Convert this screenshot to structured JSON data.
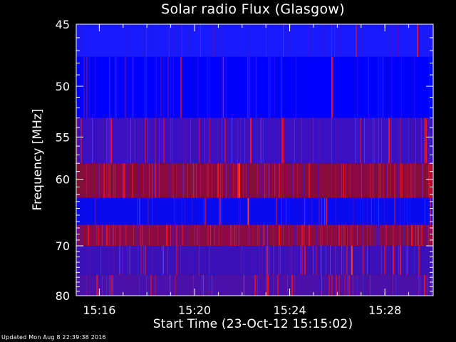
{
  "chart_data": {
    "type": "heatmap",
    "title": "Solar radio Flux (Glasgow)",
    "xlabel": "Start Time (23-Oct-12 15:15:02)",
    "ylabel": "Frequency [MHz]",
    "x_ticks": [
      "15:16",
      "15:20",
      "15:24",
      "15:28"
    ],
    "x_tick_minutes_after_start": [
      0.97,
      4.97,
      8.97,
      12.97
    ],
    "xlim_minutes_after_start": [
      0,
      15
    ],
    "y_ticks": [
      45,
      50,
      55,
      60,
      70,
      80
    ],
    "ylim_mhz": [
      45,
      80
    ],
    "y_scale": "reciprocal (frequency increasing downward)",
    "grid": false,
    "legend": "none",
    "bands": [
      {
        "freq_range_mhz": [
          45,
          47.5
        ],
        "dominant_color": "#1a1aff",
        "activity": "low"
      },
      {
        "freq_range_mhz": [
          47.5,
          53
        ],
        "dominant_color": "#0000ff",
        "activity": "low"
      },
      {
        "freq_range_mhz": [
          53,
          58
        ],
        "dominant_color": "#3a10c0",
        "activity": "moderate"
      },
      {
        "freq_range_mhz": [
          58,
          62.5
        ],
        "dominant_color": "#8a0a40",
        "activity": "high"
      },
      {
        "freq_range_mhz": [
          62.5,
          66.5
        ],
        "dominant_color": "#0a0af0",
        "activity": "low"
      },
      {
        "freq_range_mhz": [
          66.5,
          70
        ],
        "dominant_color": "#8a0a45",
        "activity": "high"
      },
      {
        "freq_range_mhz": [
          70,
          75.5
        ],
        "dominant_color": "#3c10b8",
        "activity": "moderate"
      },
      {
        "freq_range_mhz": [
          75.5,
          80
        ],
        "dominant_color": "#4a10a8",
        "activity": "moderate"
      }
    ],
    "colors": {
      "low": "#0000ff",
      "mid": "#5010b0",
      "high": "#ff1010"
    }
  },
  "footer": {
    "updated_text": "Updated Mon Aug  8 22:39:38 2016"
  }
}
